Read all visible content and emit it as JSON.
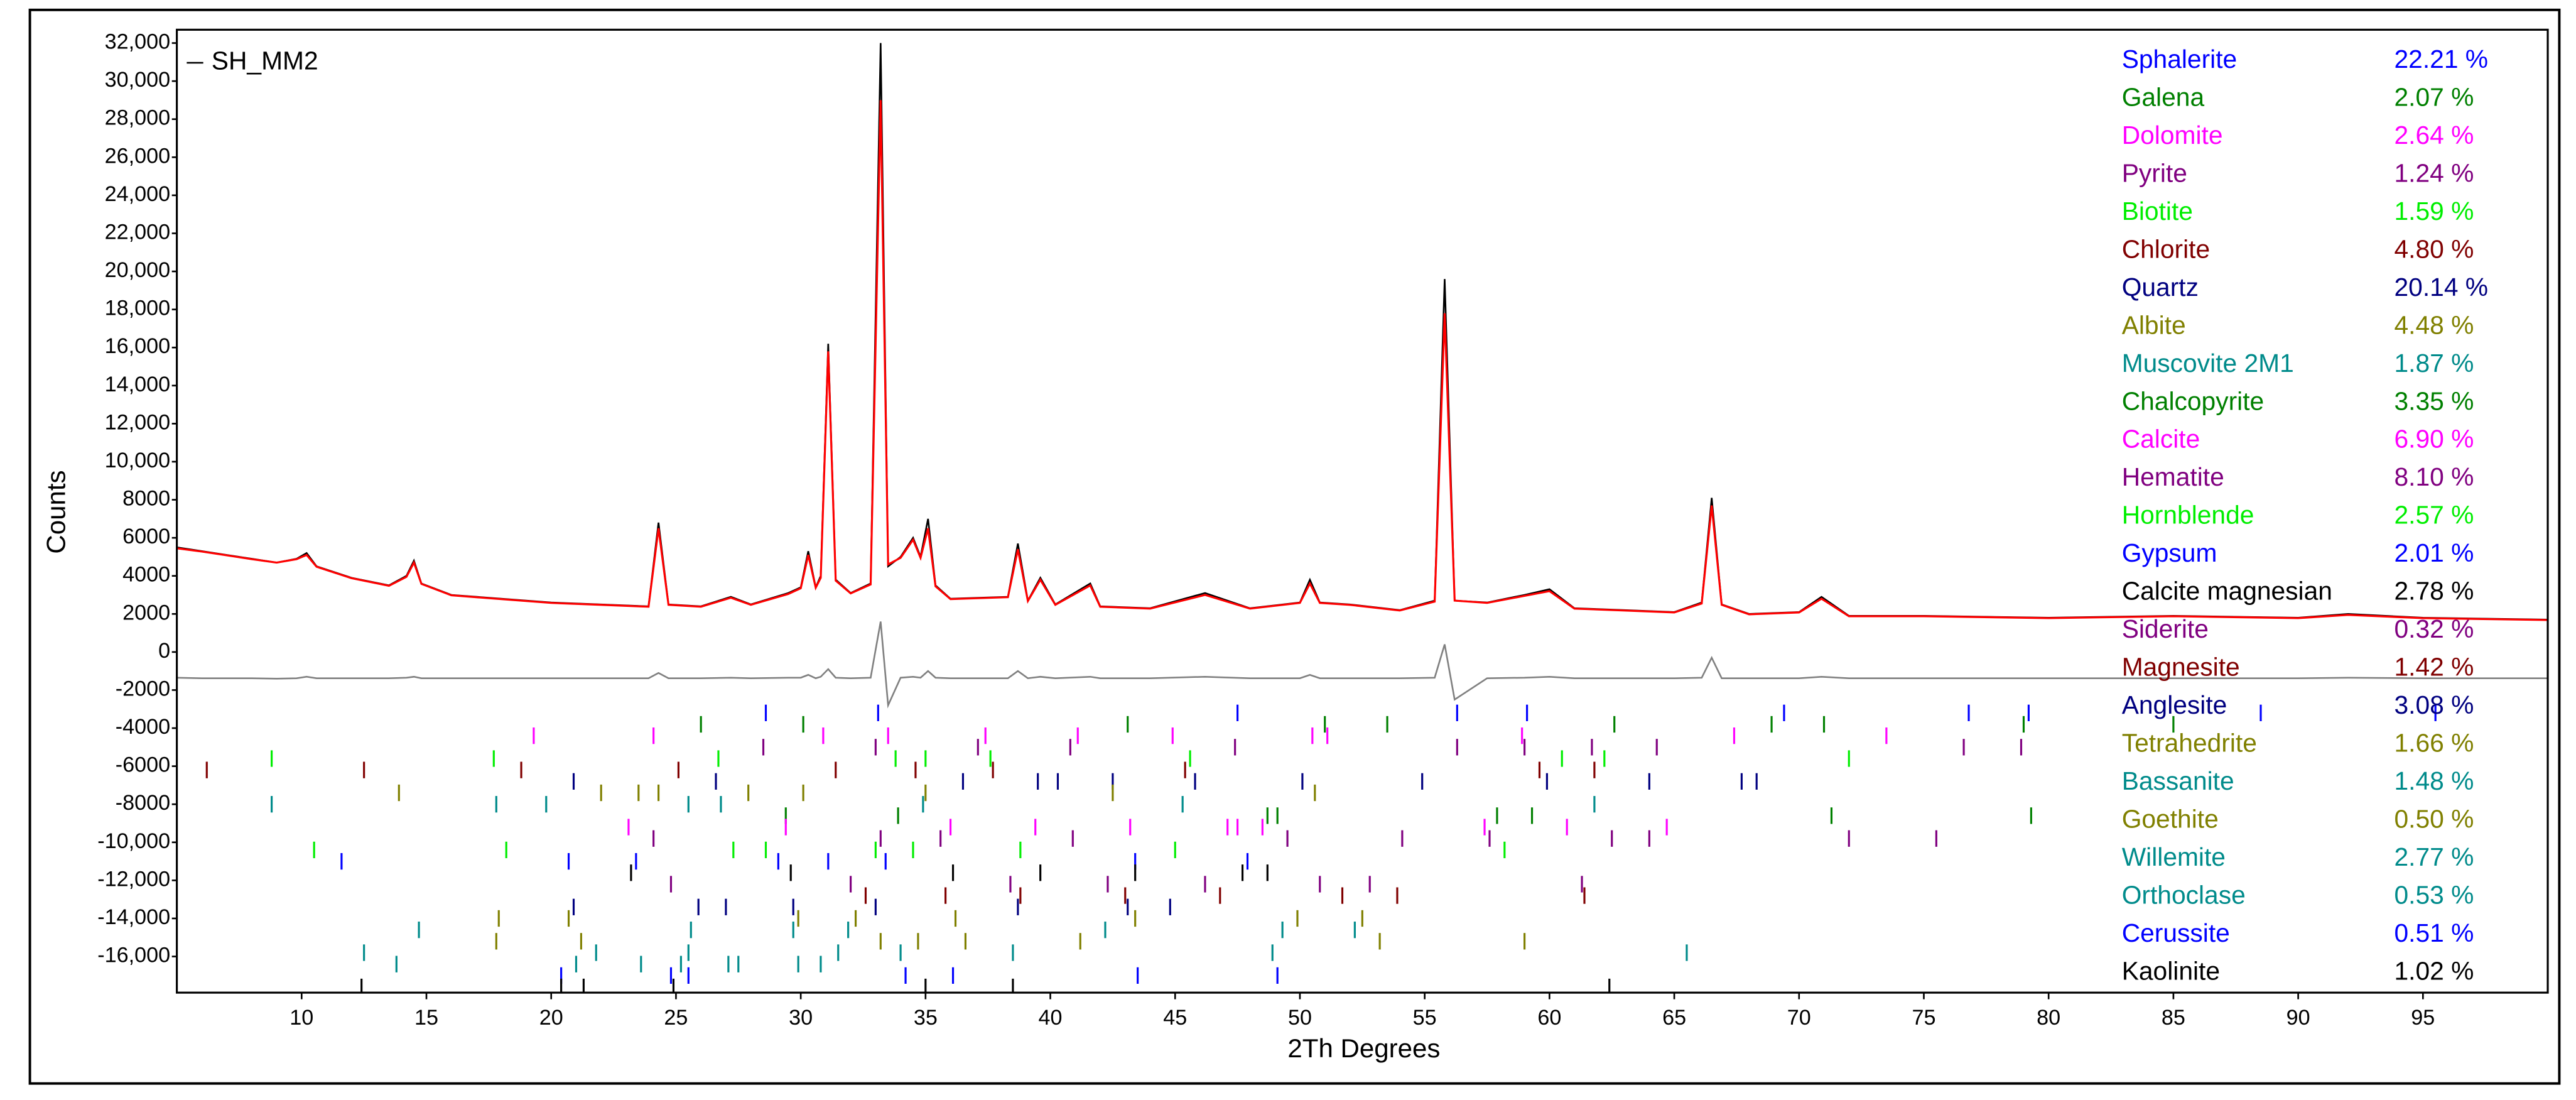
{
  "chart_data": {
    "type": "line",
    "xlabel": "2Th Degrees",
    "ylabel": "Counts",
    "xlim": [
      5,
      100
    ],
    "ylim": [
      -17900,
      32700
    ],
    "xticks": [
      10,
      15,
      20,
      25,
      30,
      35,
      40,
      45,
      50,
      55,
      60,
      65,
      70,
      75,
      80,
      85,
      90,
      95
    ],
    "yticks": [
      {
        "value": 32000,
        "label": "32,000"
      },
      {
        "value": 30000,
        "label": "30,000"
      },
      {
        "value": 28000,
        "label": "28,000"
      },
      {
        "value": 26000,
        "label": "26,000"
      },
      {
        "value": 24000,
        "label": "24,000"
      },
      {
        "value": 22000,
        "label": "22,000"
      },
      {
        "value": 20000,
        "label": "20,000"
      },
      {
        "value": 18000,
        "label": "18,000"
      },
      {
        "value": 16000,
        "label": "16,000"
      },
      {
        "value": 14000,
        "label": "14,000"
      },
      {
        "value": 12000,
        "label": "12,000"
      },
      {
        "value": 10000,
        "label": "10,000"
      },
      8000,
      6000,
      4000,
      2000,
      0,
      -2000,
      -4000,
      -6000,
      -8000,
      {
        "value": -10000,
        "label": "-10,000"
      },
      {
        "value": -12000,
        "label": "-12,000"
      },
      {
        "value": -14000,
        "label": "-14,000"
      },
      {
        "value": -16000,
        "label": "-16,000"
      }
    ],
    "grid": false,
    "x": [
      5,
      6,
      7,
      8,
      9,
      9.8,
      10.2,
      10.6,
      12,
      13.5,
      14.2,
      14.5,
      14.8,
      16,
      18,
      20,
      22,
      23.9,
      24.3,
      24.7,
      26,
      27.2,
      28,
      29.5,
      30,
      30.3,
      30.6,
      30.8,
      31.1,
      31.4,
      32,
      32.8,
      33.2,
      33.5,
      34,
      34.5,
      34.8,
      35.1,
      35.4,
      36,
      38.3,
      38.7,
      39.1,
      39.6,
      40.2,
      41.6,
      42,
      44,
      46.2,
      48,
      50,
      50.4,
      50.8,
      52,
      54,
      55.4,
      55.8,
      56.2,
      57.5,
      59,
      60,
      61,
      63,
      65,
      66.1,
      66.5,
      66.9,
      68,
      70,
      70.9,
      72,
      75,
      80,
      85,
      90,
      92,
      95,
      100
    ],
    "series": [
      {
        "name": "SH_MM2",
        "color": "#000000",
        "values": [
          5500,
          5300,
          5100,
          4900,
          4700,
          4900,
          5200,
          4500,
          3900,
          3500,
          4000,
          4800,
          3600,
          3000,
          2800,
          2600,
          2500,
          2400,
          6800,
          2500,
          2400,
          2900,
          2500,
          3100,
          3400,
          5300,
          3400,
          4000,
          16200,
          3800,
          3100,
          3600,
          32000,
          4500,
          5000,
          6000,
          5000,
          7000,
          3500,
          2800,
          2900,
          5700,
          2700,
          3900,
          2500,
          3600,
          2400,
          2300,
          3100,
          2300,
          2600,
          3800,
          2600,
          2500,
          2200,
          2700,
          19600,
          2700,
          2600,
          3000,
          3300,
          2300,
          2200,
          2100,
          2600,
          8100,
          2500,
          2000,
          2100,
          2900,
          1900,
          1900,
          1800,
          1900,
          1800,
          2000,
          1800,
          1700
        ]
      },
      {
        "color": "#ff0000",
        "values": [
          5450,
          5280,
          5080,
          4880,
          4700,
          4880,
          5100,
          4480,
          3880,
          3480,
          3950,
          4700,
          3580,
          2980,
          2780,
          2580,
          2480,
          2380,
          6500,
          2480,
          2380,
          2850,
          2480,
          3050,
          3350,
          5100,
          3380,
          3900,
          15800,
          3750,
          3080,
          3550,
          29000,
          4600,
          4950,
          5900,
          4950,
          6500,
          3450,
          2780,
          2880,
          5400,
          2680,
          3800,
          2480,
          3500,
          2380,
          2280,
          3000,
          2280,
          2580,
          3600,
          2580,
          2480,
          2180,
          2650,
          17800,
          2700,
          2580,
          2950,
          3200,
          2280,
          2180,
          2080,
          2550,
          7700,
          2480,
          1980,
          2080,
          2800,
          1880,
          1880,
          1780,
          1880,
          1780,
          1950,
          1780,
          1680
        ]
      },
      {
        "color": "#808080",
        "values": [
          -1350,
          -1380,
          -1380,
          -1380,
          -1400,
          -1380,
          -1300,
          -1380,
          -1380,
          -1380,
          -1350,
          -1300,
          -1380,
          -1380,
          -1380,
          -1380,
          -1380,
          -1380,
          -1100,
          -1380,
          -1380,
          -1350,
          -1380,
          -1350,
          -1350,
          -1200,
          -1380,
          -1300,
          -900,
          -1350,
          -1380,
          -1350,
          1600,
          -2800,
          -1350,
          -1300,
          -1350,
          -1000,
          -1350,
          -1380,
          -1380,
          -1000,
          -1380,
          -1300,
          -1380,
          -1300,
          -1380,
          -1380,
          -1300,
          -1380,
          -1380,
          -1200,
          -1380,
          -1380,
          -1380,
          -1350,
          400,
          -2500,
          -1380,
          -1350,
          -1300,
          -1380,
          -1380,
          -1380,
          -1350,
          -300,
          -1380,
          -1380,
          -1380,
          -1300,
          -1380,
          -1380,
          -1380,
          -1380,
          -1380,
          -1350,
          -1380,
          -1380
        ]
      }
    ],
    "phases": [
      {
        "name": "Sphalerite",
        "color": "#0000ff",
        "value": 22.21,
        "value_label": "22.21 %",
        "positions": [
          28.6,
          33.1,
          47.5,
          56.3,
          59.1,
          69.4,
          76.8,
          79.2,
          88.5,
          95.5
        ]
      },
      {
        "name": "Galena",
        "color": "#008000",
        "value": 2.07,
        "value_label": "2.07 %",
        "positions": [
          26.0,
          30.1,
          43.1,
          51.0,
          53.5,
          62.6,
          68.9,
          71.0,
          79.0,
          85.0
        ]
      },
      {
        "name": "Dolomite",
        "color": "#ff00ff",
        "value": 2.64,
        "value_label": "2.64 %",
        "positions": [
          19.3,
          24.1,
          30.9,
          33.5,
          37.4,
          41.1,
          44.9,
          50.5,
          51.1,
          58.9,
          67.4,
          73.5
        ]
      },
      {
        "name": "Pyrite",
        "color": "#800080",
        "value": 1.24,
        "value_label": "1.24 %",
        "positions": [
          28.5,
          33.0,
          37.1,
          40.8,
          47.4,
          56.3,
          59.0,
          61.7,
          64.3,
          76.6,
          78.9
        ]
      },
      {
        "name": "Biotite",
        "color": "#00ee00",
        "value": 1.59,
        "value_label": "1.59 %",
        "positions": [
          8.8,
          17.7,
          26.7,
          33.8,
          35.0,
          37.6,
          45.6,
          60.5,
          62.2,
          72.0
        ]
      },
      {
        "name": "Chlorite",
        "color": "#800000",
        "value": 4.8,
        "value_label": "4.80 %",
        "positions": [
          6.2,
          12.5,
          18.8,
          25.1,
          31.4,
          34.6,
          37.7,
          45.4,
          59.6,
          61.8
        ]
      },
      {
        "name": "Quartz",
        "color": "#000080",
        "value": 20.14,
        "value_label": "20.14 %",
        "positions": [
          20.9,
          26.6,
          36.5,
          39.5,
          40.3,
          42.5,
          45.8,
          50.1,
          54.9,
          59.9,
          64.0,
          67.7,
          68.3
        ]
      },
      {
        "name": "Albite",
        "color": "#808000",
        "value": 4.48,
        "value_label": "4.48 %",
        "positions": [
          13.9,
          22.0,
          23.5,
          24.3,
          27.9,
          30.1,
          35.0,
          42.5,
          50.6
        ]
      },
      {
        "name": "Muscovite 2M1",
        "color": "#008b8b",
        "value": 1.87,
        "value_label": "1.87 %",
        "positions": [
          8.8,
          17.8,
          19.8,
          25.5,
          26.8,
          34.9,
          45.3,
          61.8
        ]
      },
      {
        "name": "Chalcopyrite",
        "color": "#008000",
        "value": 3.35,
        "value_label": "3.35 %",
        "positions": [
          29.4,
          33.9,
          48.7,
          49.1,
          57.9,
          59.3,
          71.3,
          79.3
        ]
      },
      {
        "name": "Calcite",
        "color": "#ff00ff",
        "value": 6.9,
        "value_label": "6.90 %",
        "positions": [
          23.1,
          29.4,
          36.0,
          39.4,
          43.2,
          47.1,
          47.5,
          48.5,
          57.4,
          60.7,
          64.7
        ]
      },
      {
        "name": "Hematite",
        "color": "#800080",
        "value": 8.1,
        "value_label": "8.10 %",
        "positions": [
          24.1,
          33.2,
          35.6,
          40.9,
          49.5,
          54.1,
          57.6,
          62.5,
          64.0,
          72.0,
          75.5
        ]
      },
      {
        "name": "Hornblende",
        "color": "#00ee00",
        "value": 2.57,
        "value_label": "2.57 %",
        "positions": [
          10.5,
          18.2,
          27.3,
          28.6,
          33.0,
          34.5,
          38.8,
          45.0,
          58.2
        ]
      },
      {
        "name": "Gypsum",
        "color": "#0000ff",
        "value": 2.01,
        "value_label": "2.01 %",
        "positions": [
          11.6,
          20.7,
          23.4,
          29.1,
          31.1,
          33.4,
          43.4,
          47.9
        ]
      },
      {
        "name": "Calcite magnesian",
        "color": "#000000",
        "value": 2.78,
        "value_label": "2.78 %",
        "positions": [
          23.2,
          29.6,
          36.1,
          39.6,
          43.4,
          47.7,
          48.7
        ]
      },
      {
        "name": "Siderite",
        "color": "#800080",
        "value": 0.32,
        "value_label": "0.32 %",
        "positions": [
          24.8,
          32.0,
          38.4,
          42.3,
          46.2,
          50.8,
          52.8,
          61.3
        ]
      },
      {
        "name": "Magnesite",
        "color": "#800000",
        "value": 1.42,
        "value_label": "1.42 %",
        "positions": [
          32.6,
          35.8,
          38.8,
          43.0,
          46.8,
          51.7,
          53.9,
          61.4
        ]
      },
      {
        "name": "Anglesite",
        "color": "#000080",
        "value": 3.08,
        "value_label": "3.08 %",
        "positions": [
          20.9,
          25.9,
          27.0,
          29.7,
          33.0,
          38.7,
          43.1,
          44.8
        ]
      },
      {
        "name": "Tetrahedrite",
        "color": "#808000",
        "value": 1.66,
        "value_label": "1.66 %",
        "positions": [
          17.9,
          20.7,
          29.9,
          32.2,
          36.2,
          43.4,
          49.9,
          52.5
        ]
      },
      {
        "name": "Bassanite",
        "color": "#008b8b",
        "value": 1.48,
        "value_label": "1.48 %",
        "positions": [
          14.7,
          25.6,
          29.7,
          31.9,
          42.2,
          49.3,
          52.2
        ]
      },
      {
        "name": "Goethite",
        "color": "#808000",
        "value": 0.5,
        "value_label": "0.50 %",
        "positions": [
          17.8,
          21.2,
          33.2,
          34.7,
          36.6,
          41.2,
          53.2,
          59.0
        ]
      },
      {
        "name": "Willemite",
        "color": "#008b8b",
        "value": 2.77,
        "value_label": "2.77 %",
        "positions": [
          12.5,
          21.8,
          25.5,
          31.5,
          34.0,
          38.5,
          48.9,
          65.5
        ]
      },
      {
        "name": "Orthoclase",
        "color": "#008b8b",
        "value": 0.53,
        "value_label": "0.53 %",
        "positions": [
          13.8,
          21.0,
          23.6,
          25.2,
          27.1,
          27.5,
          29.9,
          30.8
        ]
      },
      {
        "name": "Cerussite",
        "color": "#0000ff",
        "value": 0.51,
        "value_label": "0.51 %",
        "positions": [
          20.4,
          24.8,
          25.5,
          34.2,
          36.1,
          43.5,
          49.1
        ]
      },
      {
        "name": "Kaolinite",
        "color": "#000000",
        "value": 1.02,
        "value_label": "1.02 %",
        "positions": [
          12.4,
          20.4,
          21.3,
          24.9,
          35.0,
          38.5,
          62.4
        ]
      }
    ]
  }
}
